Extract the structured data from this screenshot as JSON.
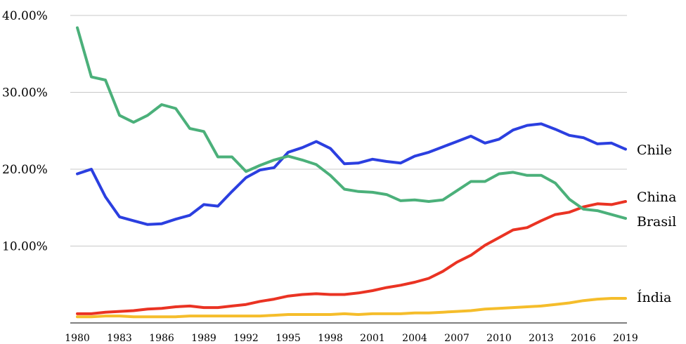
{
  "chart_data": {
    "type": "line",
    "x": [
      1980,
      1981,
      1982,
      1983,
      1984,
      1985,
      1986,
      1987,
      1988,
      1989,
      1990,
      1991,
      1992,
      1993,
      1994,
      1995,
      1996,
      1997,
      1998,
      1999,
      2000,
      2001,
      2002,
      2003,
      2004,
      2005,
      2006,
      2007,
      2008,
      2009,
      2010,
      2011,
      2012,
      2013,
      2014,
      2015,
      2016,
      2017,
      2018,
      2019
    ],
    "x_tick_labels": [
      "1980",
      "1983",
      "1986",
      "1989",
      "1992",
      "1995",
      "1998",
      "2001",
      "2004",
      "2007",
      "2010",
      "2013",
      "2016",
      "2019"
    ],
    "x_tick_values": [
      1980,
      1983,
      1986,
      1989,
      1992,
      1995,
      1998,
      2001,
      2004,
      2007,
      2010,
      2013,
      2016,
      2019
    ],
    "y_tick_labels": [
      "10.00%",
      "20.00%",
      "30.00%",
      "40.00%"
    ],
    "y_tick_values": [
      10,
      20,
      30,
      40
    ],
    "ylim": [
      0,
      40
    ],
    "grid": true,
    "legend": "labels at line ends (right)",
    "series": [
      {
        "name": "Chile",
        "color": "#2b3fe0",
        "values": [
          19.4,
          20.0,
          16.4,
          13.8,
          13.3,
          12.8,
          12.9,
          13.5,
          14.0,
          15.4,
          15.2,
          17.1,
          18.9,
          19.9,
          20.2,
          22.2,
          22.8,
          23.6,
          22.7,
          20.7,
          20.8,
          21.3,
          21.0,
          20.8,
          21.7,
          22.2,
          22.9,
          23.6,
          24.3,
          23.4,
          23.9,
          25.1,
          25.7,
          25.9,
          25.2,
          24.4,
          24.1,
          23.3,
          23.4,
          22.6
        ]
      },
      {
        "name": "China",
        "color": "#ea3323",
        "values": [
          1.2,
          1.2,
          1.4,
          1.5,
          1.6,
          1.8,
          1.9,
          2.1,
          2.2,
          2.0,
          2.0,
          2.2,
          2.4,
          2.8,
          3.1,
          3.5,
          3.7,
          3.8,
          3.7,
          3.7,
          3.9,
          4.2,
          4.6,
          4.9,
          5.3,
          5.8,
          6.7,
          7.9,
          8.8,
          10.1,
          11.1,
          12.1,
          12.4,
          13.3,
          14.1,
          14.4,
          15.1,
          15.5,
          15.4,
          15.8
        ]
      },
      {
        "name": "Brasil",
        "color": "#4bb07a",
        "values": [
          38.4,
          32.0,
          31.6,
          27.0,
          26.1,
          27.0,
          28.4,
          27.9,
          25.3,
          24.9,
          21.6,
          21.6,
          19.7,
          20.5,
          21.2,
          21.7,
          21.2,
          20.6,
          19.2,
          17.4,
          17.1,
          17.0,
          16.7,
          15.9,
          16.0,
          15.8,
          16.0,
          17.2,
          18.4,
          18.4,
          19.4,
          19.6,
          19.2,
          19.2,
          18.2,
          16.1,
          14.8,
          14.6,
          14.1,
          13.6
        ]
      },
      {
        "name": "Índia",
        "color": "#f5bd2b",
        "values": [
          0.8,
          0.8,
          0.9,
          0.9,
          0.8,
          0.8,
          0.8,
          0.8,
          0.9,
          0.9,
          0.9,
          0.9,
          0.9,
          0.9,
          1.0,
          1.1,
          1.1,
          1.1,
          1.1,
          1.2,
          1.1,
          1.2,
          1.2,
          1.2,
          1.3,
          1.3,
          1.4,
          1.5,
          1.6,
          1.8,
          1.9,
          2.0,
          2.1,
          2.2,
          2.4,
          2.6,
          2.9,
          3.1,
          3.2,
          3.2
        ]
      }
    ]
  }
}
